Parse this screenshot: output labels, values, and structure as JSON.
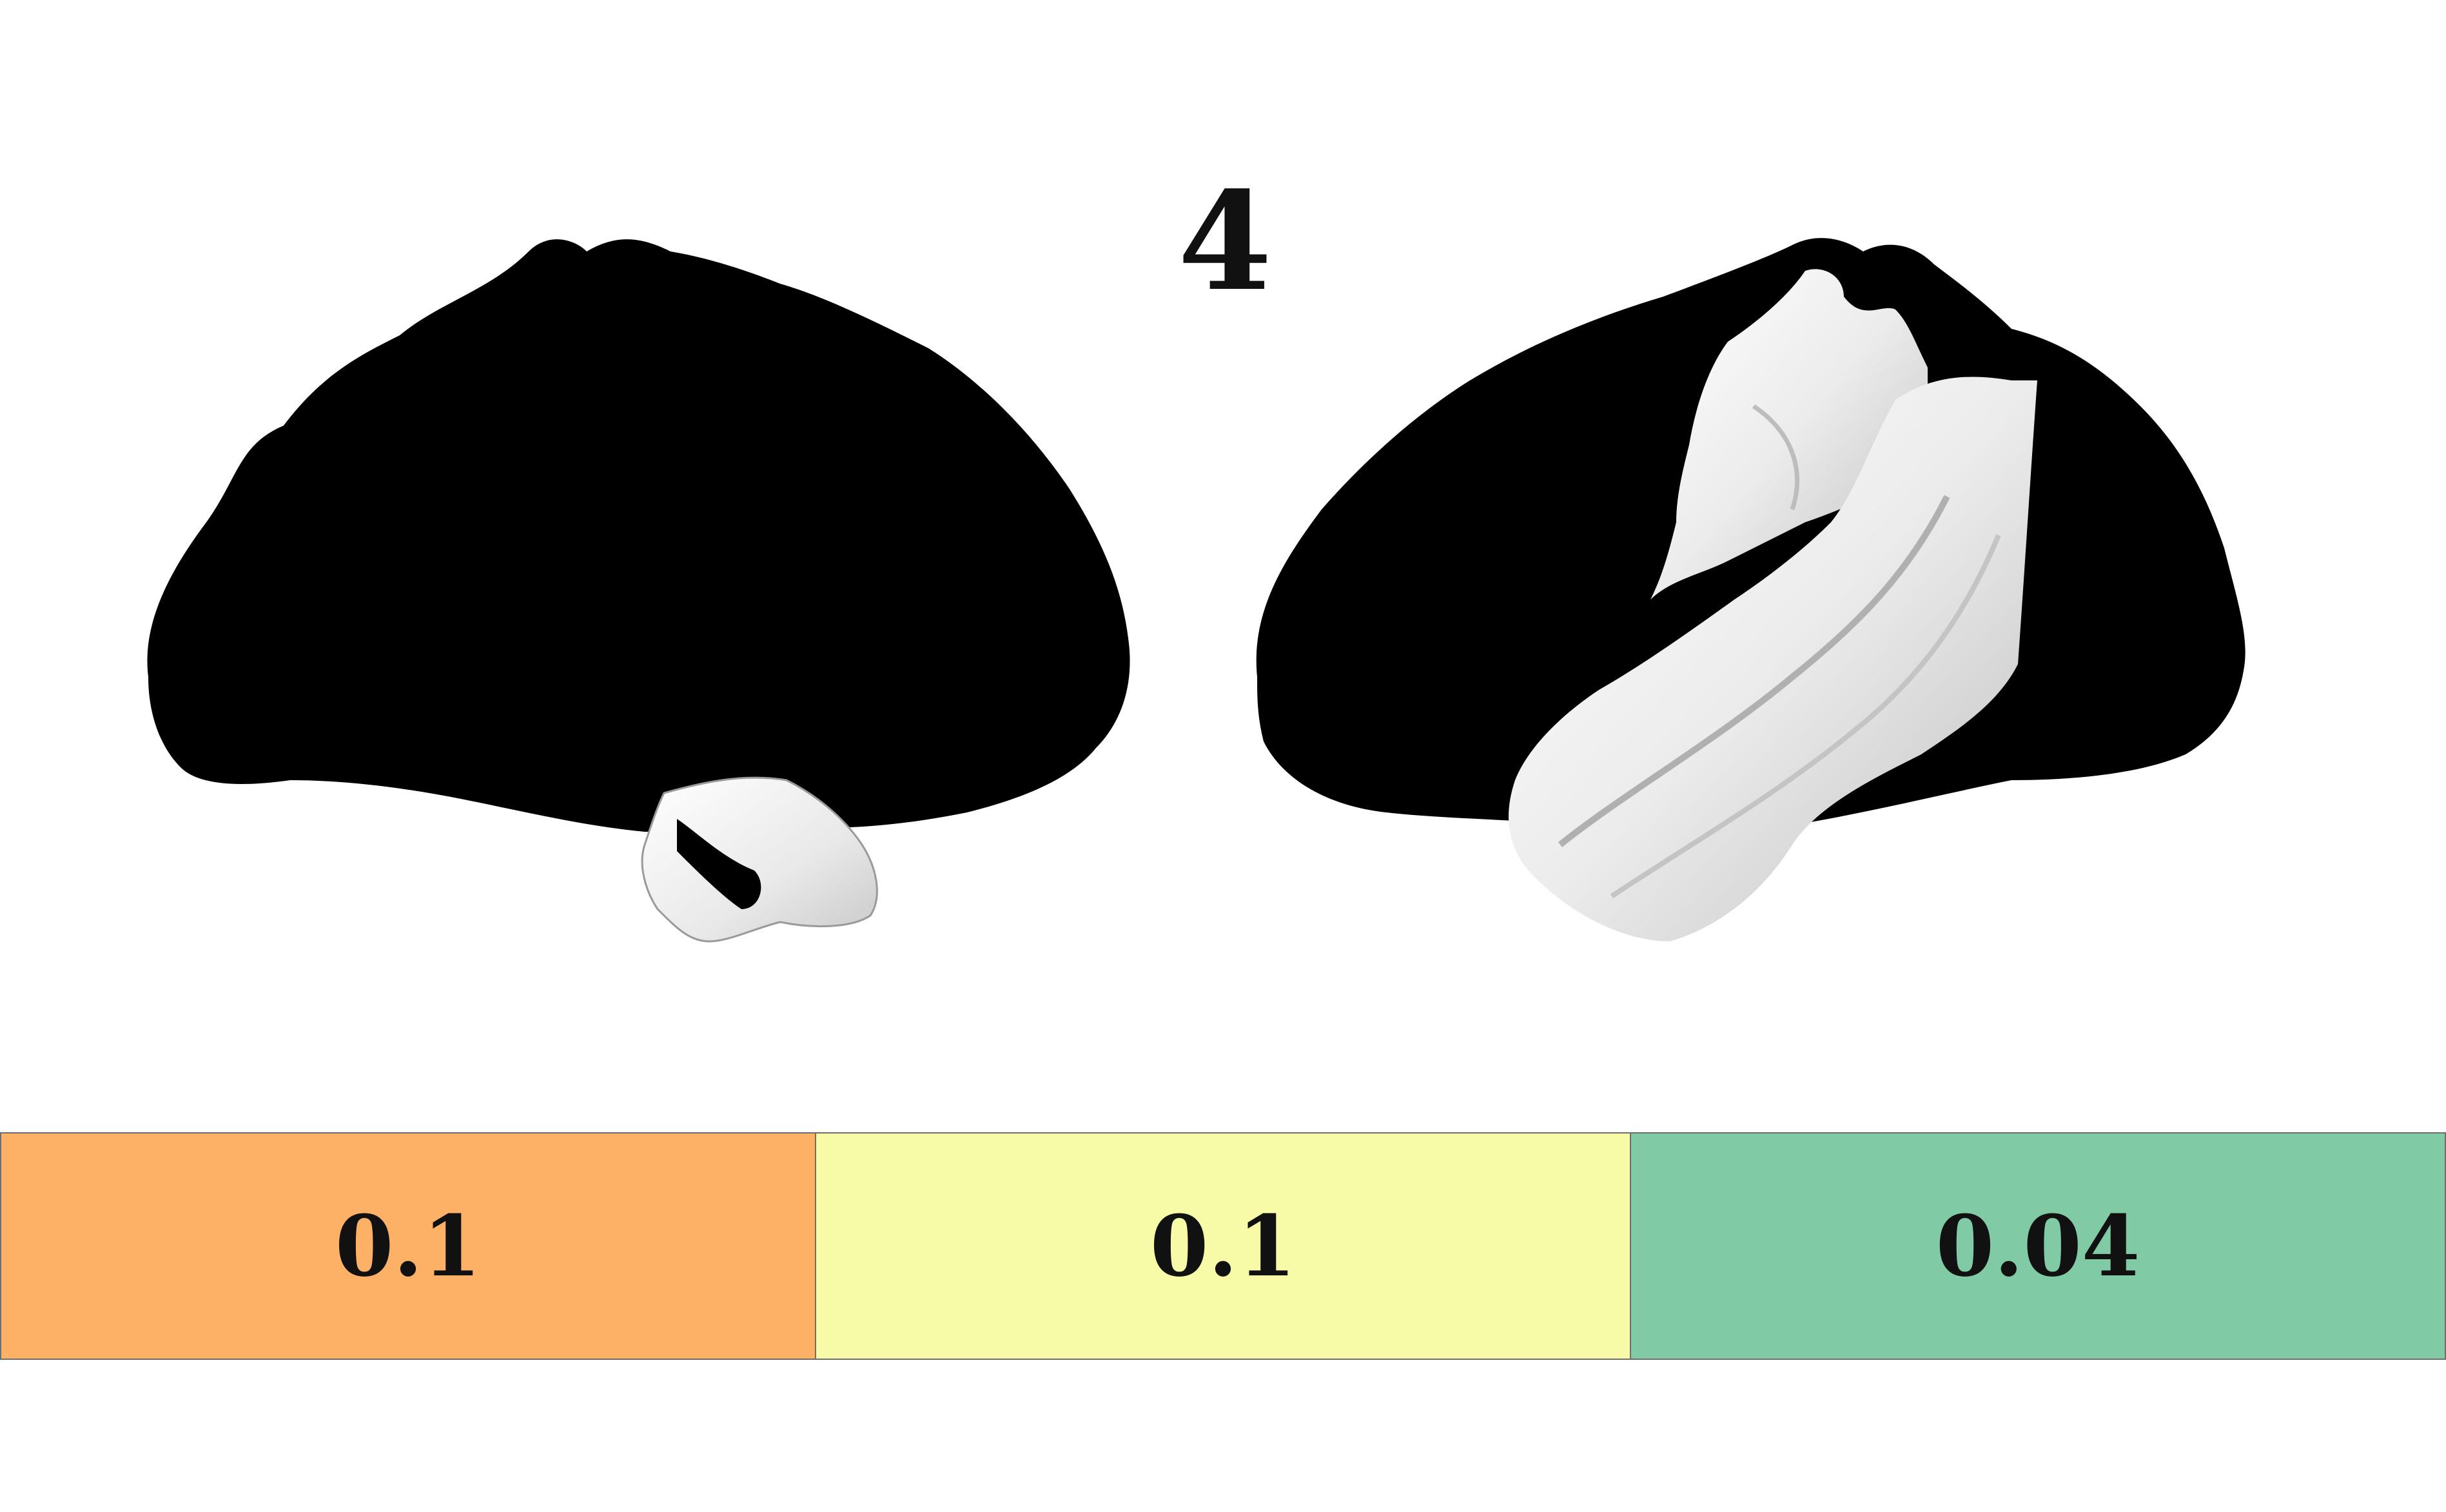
{
  "figure": {
    "title": "4"
  },
  "legend": {
    "items": [
      {
        "value": "0.1",
        "color": "#fcb166"
      },
      {
        "value": "0.1",
        "color": "#f7fba8"
      },
      {
        "value": "0.04",
        "color": "#80cba6"
      }
    ]
  },
  "colors": {
    "brain_base": "#000000",
    "highlight_region": "#f2f2f2",
    "background": "#ffffff"
  }
}
